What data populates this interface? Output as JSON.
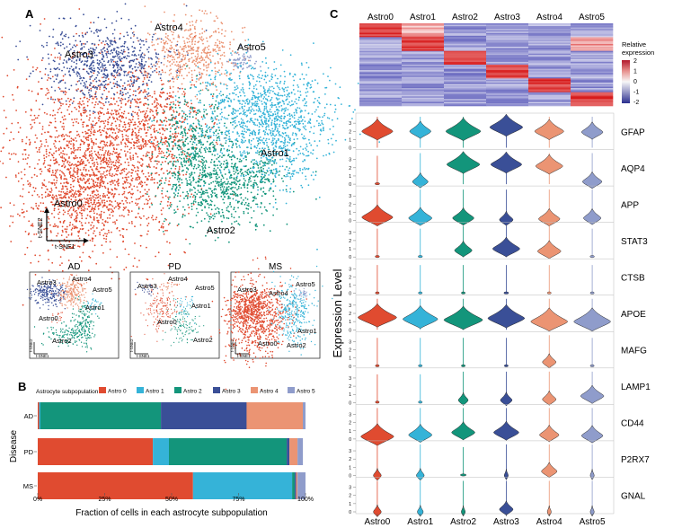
{
  "colors": {
    "Astro0": "#e04b30",
    "Astro1": "#35b3d8",
    "Astro2": "#13957b",
    "Astro3": "#3a4f97",
    "Astro4": "#eb9473",
    "Astro5": "#8f9ccb"
  },
  "panels": {
    "A": "A",
    "B": "B",
    "C": "C"
  },
  "tsne": {
    "xlabel": "t-SNE1",
    "ylabel": "t-SNE2",
    "cluster_labels": [
      "Astro0",
      "Astro1",
      "Astro2",
      "Astro3",
      "Astro4",
      "Astro5"
    ],
    "disease_panels": [
      {
        "title": "AD",
        "labels": [
          "Astro3",
          "Astro4",
          "Astro5",
          "Astro1",
          "Astro0",
          "Astro2"
        ]
      },
      {
        "title": "PD",
        "labels": [
          "Astro3",
          "Astro4",
          "Astro5",
          "Astro1",
          "Astro0",
          "Astro2"
        ]
      },
      {
        "title": "MS",
        "labels": [
          "Astro3",
          "Astro4",
          "Astro5",
          "Astro1",
          "Astro0",
          "Astro2"
        ]
      }
    ]
  },
  "chart_data": [
    {
      "type": "bar",
      "stacked": true,
      "orientation": "horizontal",
      "legend_title": "Astrocyte subpopulation",
      "categories": [
        "AD",
        "PD",
        "MS"
      ],
      "ylabel": "Disease",
      "xlabel": "Fraction of cells in each astrocyte subpopulation",
      "xticks": [
        "0%",
        "25%",
        "50%",
        "75%",
        "100%"
      ],
      "series": [
        {
          "name": "Astro 0",
          "values": [
            0.005,
            0.43,
            0.58
          ]
        },
        {
          "name": "Astro 1",
          "values": [
            0.005,
            0.06,
            0.37
          ]
        },
        {
          "name": "Astro 2",
          "values": [
            0.45,
            0.44,
            0.01
          ]
        },
        {
          "name": "Astro 3",
          "values": [
            0.32,
            0.01,
            0.005
          ]
        },
        {
          "name": "Astro 4",
          "values": [
            0.21,
            0.03,
            0.005
          ]
        },
        {
          "name": "Astro 5",
          "values": [
            0.01,
            0.02,
            0.03
          ]
        }
      ]
    },
    {
      "type": "heatmap",
      "columns": [
        "Astro0",
        "Astro1",
        "Astro2",
        "Astro3",
        "Astro4",
        "Astro5"
      ],
      "legend_title": "Relative expression",
      "scale_ticks": [
        "2",
        "1",
        "0",
        "-1",
        "-2"
      ],
      "blocks": [
        {
          "rows": [
            0,
            10
          ],
          "high_column": "Astro0"
        },
        {
          "rows": [
            10,
            20
          ],
          "high_column": "Astro1"
        },
        {
          "rows": [
            20,
            30
          ],
          "high_column": "Astro2"
        },
        {
          "rows": [
            30,
            40
          ],
          "high_column": "Astro3"
        },
        {
          "rows": [
            40,
            50
          ],
          "high_column": "Astro4"
        },
        {
          "rows": [
            50,
            60
          ],
          "high_column": "Astro5"
        }
      ]
    },
    {
      "type": "violin",
      "clusters": [
        "Astro0",
        "Astro1",
        "Astro2",
        "Astro3",
        "Astro4",
        "Astro5"
      ],
      "ylabel": "Expression Level",
      "yticks": [
        "0",
        "1",
        "2",
        "3",
        "4"
      ],
      "genes": [
        {
          "name": "GFAP",
          "medians": [
            2.0,
            2.0,
            2.0,
            2.5,
            2.0,
            1.9
          ],
          "widths": [
            0.8,
            0.55,
            0.9,
            0.85,
            0.75,
            0.55
          ]
        },
        {
          "name": "AQP4",
          "medians": [
            0.0,
            0.3,
            2.4,
            2.4,
            2.2,
            0.3
          ],
          "widths": [
            0.05,
            0.4,
            0.85,
            0.8,
            0.7,
            0.5
          ]
        },
        {
          "name": "APP",
          "medians": [
            0.4,
            0.3,
            0.3,
            0.1,
            0.2,
            0.3
          ],
          "widths": [
            0.8,
            0.6,
            0.55,
            0.35,
            0.55,
            0.45
          ]
        },
        {
          "name": "STAT3",
          "medians": [
            0.0,
            0.0,
            0.8,
            1.0,
            0.7,
            0.0
          ],
          "widths": [
            0.04,
            0.04,
            0.45,
            0.7,
            0.6,
            0.04
          ]
        },
        {
          "name": "CTSB",
          "medians": [
            0.0,
            0.0,
            0.0,
            0.0,
            0.0,
            0.0
          ],
          "widths": [
            0.03,
            0.03,
            0.03,
            0.05,
            0.03,
            0.03
          ]
        },
        {
          "name": "APOE",
          "medians": [
            1.5,
            1.3,
            1.2,
            1.4,
            1.0,
            1.0
          ],
          "widths": [
            1.0,
            0.9,
            1.0,
            0.95,
            0.95,
            0.95
          ]
        },
        {
          "name": "MAFG",
          "medians": [
            0.0,
            0.0,
            0.0,
            0.0,
            0.5,
            0.0
          ],
          "widths": [
            0.03,
            0.03,
            0.03,
            0.03,
            0.35,
            0.03
          ]
        },
        {
          "name": "LAMP1",
          "medians": [
            0.0,
            0.0,
            0.3,
            0.3,
            0.4,
            0.8
          ],
          "widths": [
            0.03,
            0.03,
            0.25,
            0.3,
            0.35,
            0.6
          ]
        },
        {
          "name": "CD44",
          "medians": [
            0.3,
            0.5,
            0.8,
            0.8,
            0.5,
            0.4
          ],
          "widths": [
            0.85,
            0.6,
            0.6,
            0.65,
            0.5,
            0.55
          ]
        },
        {
          "name": "P2RX7",
          "medians": [
            0.0,
            0.0,
            0.0,
            0.0,
            0.5,
            0.0
          ],
          "widths": [
            0.2,
            0.2,
            0.08,
            0.1,
            0.4,
            0.1
          ]
        },
        {
          "name": "GNAL",
          "medians": [
            0.0,
            0.0,
            0.0,
            0.3,
            0.0,
            0.0
          ],
          "widths": [
            0.2,
            0.15,
            0.1,
            0.35,
            0.1,
            0.1
          ]
        }
      ]
    }
  ]
}
